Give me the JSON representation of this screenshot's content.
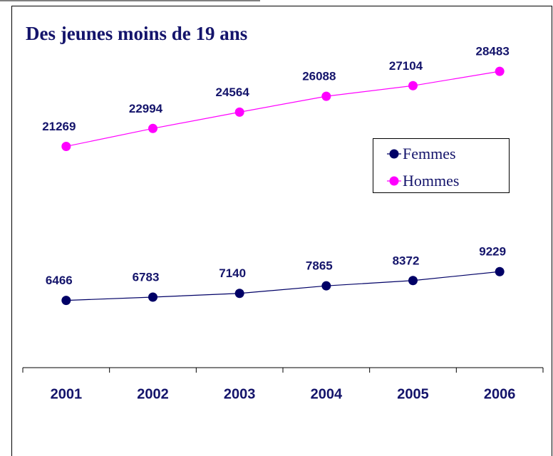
{
  "chart_data": {
    "type": "line",
    "title": "Des jeunes moins de 19 ans",
    "categories": [
      "2001",
      "2002",
      "2003",
      "2004",
      "2005",
      "2006"
    ],
    "series": [
      {
        "name": "Femmes",
        "color": "#000066",
        "values": [
          6466,
          6783,
          7140,
          7865,
          8372,
          9229
        ]
      },
      {
        "name": "Hommes",
        "color": "#ff00ff",
        "values": [
          21269,
          22994,
          24564,
          26088,
          27104,
          28483
        ]
      }
    ],
    "ylim": [
      0,
      35000
    ],
    "legend": "right"
  }
}
